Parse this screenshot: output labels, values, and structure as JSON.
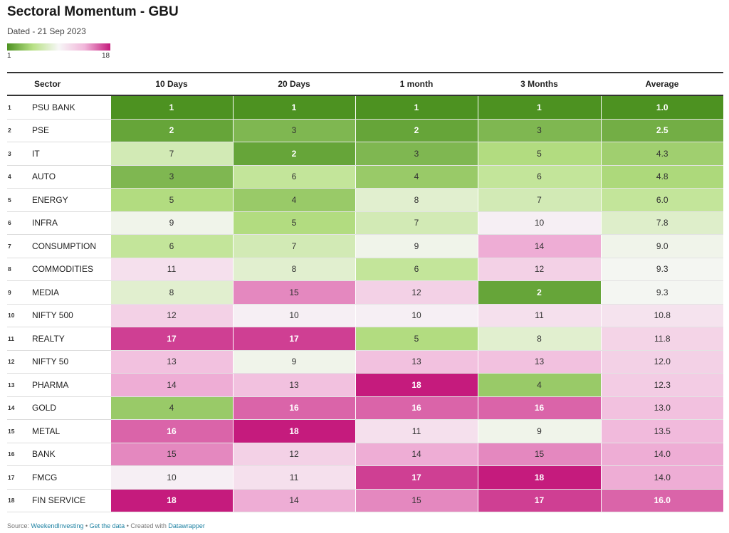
{
  "header": {
    "title": "Sectoral Momentum - GBU",
    "subtitle": "Dated - 21 Sep 2023"
  },
  "legend": {
    "min_label": "1",
    "max_label": "18",
    "colors": [
      "#4d9221",
      "#b8e186",
      "#f7f7f7",
      "#f1b6da",
      "#c51b7d"
    ]
  },
  "columns": [
    "Sector",
    "10 Days",
    "20 Days",
    "1 month",
    "3 Months",
    "Average"
  ],
  "chart_data": {
    "type": "heatmap",
    "title": "Sectoral Momentum - GBU",
    "subtitle": "Dated - 21 Sep 2023",
    "color_scale": {
      "min": 1,
      "max": 18
    },
    "columns": [
      "10 Days",
      "20 Days",
      "1 month",
      "3 Months",
      "Average"
    ],
    "rows": [
      {
        "rank": "1",
        "sector": "PSU BANK",
        "values": [
          "1",
          "1",
          "1",
          "1",
          "1.0"
        ]
      },
      {
        "rank": "2",
        "sector": "PSE",
        "values": [
          "2",
          "3",
          "2",
          "3",
          "2.5"
        ]
      },
      {
        "rank": "3",
        "sector": "IT",
        "values": [
          "7",
          "2",
          "3",
          "5",
          "4.3"
        ]
      },
      {
        "rank": "4",
        "sector": "AUTO",
        "values": [
          "3",
          "6",
          "4",
          "6",
          "4.8"
        ]
      },
      {
        "rank": "5",
        "sector": "ENERGY",
        "values": [
          "5",
          "4",
          "8",
          "7",
          "6.0"
        ]
      },
      {
        "rank": "6",
        "sector": "INFRA",
        "values": [
          "9",
          "5",
          "7",
          "10",
          "7.8"
        ]
      },
      {
        "rank": "7",
        "sector": "CONSUMPTION",
        "values": [
          "6",
          "7",
          "9",
          "14",
          "9.0"
        ]
      },
      {
        "rank": "8",
        "sector": "COMMODITIES",
        "values": [
          "11",
          "8",
          "6",
          "12",
          "9.3"
        ]
      },
      {
        "rank": "9",
        "sector": "MEDIA",
        "values": [
          "8",
          "15",
          "12",
          "2",
          "9.3"
        ]
      },
      {
        "rank": "10",
        "sector": "NIFTY 500",
        "values": [
          "12",
          "10",
          "10",
          "11",
          "10.8"
        ]
      },
      {
        "rank": "11",
        "sector": "REALTY",
        "values": [
          "17",
          "17",
          "5",
          "8",
          "11.8"
        ]
      },
      {
        "rank": "12",
        "sector": "NIFTY 50",
        "values": [
          "13",
          "9",
          "13",
          "13",
          "12.0"
        ]
      },
      {
        "rank": "13",
        "sector": "PHARMA",
        "values": [
          "14",
          "13",
          "18",
          "4",
          "12.3"
        ]
      },
      {
        "rank": "14",
        "sector": "GOLD",
        "values": [
          "4",
          "16",
          "16",
          "16",
          "13.0"
        ]
      },
      {
        "rank": "15",
        "sector": "METAL",
        "values": [
          "16",
          "18",
          "11",
          "9",
          "13.5"
        ]
      },
      {
        "rank": "16",
        "sector": "BANK",
        "values": [
          "15",
          "12",
          "14",
          "15",
          "14.0"
        ]
      },
      {
        "rank": "17",
        "sector": "FMCG",
        "values": [
          "10",
          "11",
          "17",
          "18",
          "14.0"
        ]
      },
      {
        "rank": "18",
        "sector": "FIN SERVICE",
        "values": [
          "18",
          "14",
          "15",
          "17",
          "16.0"
        ]
      }
    ]
  },
  "footer": {
    "source_label": "Source:",
    "source_name": "WeekendInvesting",
    "sep1": "•",
    "get_data": "Get the data",
    "sep2": "•",
    "created_with": "Created with",
    "tool": "Datawrapper"
  }
}
